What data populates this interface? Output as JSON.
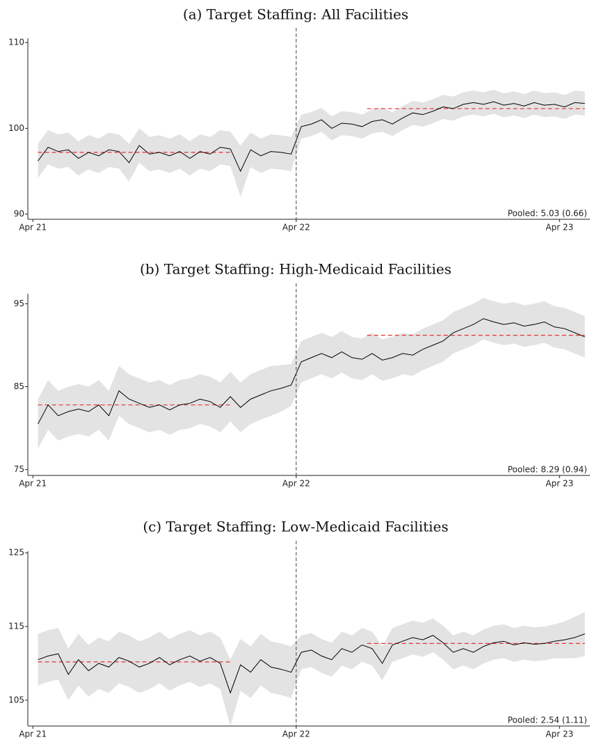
{
  "chart_data": [
    {
      "type": "line",
      "title": "(a) Target Staffing: All Facilities",
      "x": [
        1,
        3,
        5,
        7,
        9,
        11,
        13,
        15,
        17,
        19,
        21,
        23,
        25,
        27,
        29,
        31,
        33,
        35,
        37,
        39,
        41,
        43,
        45,
        47,
        49,
        51,
        53,
        55,
        57,
        59,
        61,
        63,
        65,
        67,
        69,
        71,
        73,
        75,
        77,
        79,
        81,
        83,
        85,
        87,
        89,
        91,
        93,
        95,
        97,
        99,
        101,
        103,
        105,
        107,
        109
      ],
      "xlim": [
        -1,
        110
      ],
      "xticks": [
        {
          "value": 0,
          "label": "Apr 21"
        },
        {
          "value": 52,
          "label": "Apr 22"
        },
        {
          "value": 104,
          "label": "Apr 23"
        }
      ],
      "ylim": [
        89.4,
        110.5
      ],
      "yticks": [
        90,
        100,
        110
      ],
      "series": [
        {
          "color": "#000000",
          "band_color": "#e3e3e3",
          "values": [
            96.2,
            97.8,
            97.3,
            97.5,
            96.5,
            97.2,
            96.8,
            97.5,
            97.3,
            96.0,
            98.0,
            97.0,
            97.2,
            96.8,
            97.3,
            96.5,
            97.3,
            97.0,
            97.8,
            97.6,
            95.0,
            97.5,
            96.8,
            97.3,
            97.2,
            97.0,
            100.2,
            100.5,
            101.0,
            100.0,
            100.6,
            100.5,
            100.2,
            100.8,
            101.0,
            100.5,
            101.2,
            101.8,
            101.6,
            102.0,
            102.5,
            102.3,
            102.8,
            103.0,
            102.8,
            103.1,
            102.7,
            102.9,
            102.6,
            103.0,
            102.7,
            102.8,
            102.5,
            103.0,
            102.9
          ],
          "ci": [
            2,
            2,
            2,
            2,
            2,
            2,
            2,
            2,
            2,
            2.2,
            2,
            2,
            2,
            2,
            2,
            2,
            2,
            2,
            2,
            2,
            3,
            2,
            2,
            2,
            2,
            2,
            1.4,
            1.4,
            1.4,
            1.4,
            1.4,
            1.4,
            1.4,
            1.4,
            1.4,
            1.4,
            1.4,
            1.4,
            1.4,
            1.4,
            1.4,
            1.4,
            1.4,
            1.4,
            1.4,
            1.4,
            1.4,
            1.4,
            1.4,
            1.4,
            1.4,
            1.4,
            1.4,
            1.4,
            1.4
          ]
        }
      ],
      "reference_lines": [
        {
          "value": 97.2,
          "x": [
            1,
            39
          ],
          "color": "#e8302f"
        },
        {
          "value": 102.3,
          "x": [
            66,
            109
          ],
          "color": "#e8302f"
        }
      ],
      "vline": 52,
      "annotation": "Pooled: 5.03 (0.66)"
    },
    {
      "type": "line",
      "title": "(b) Target Staffing: High-Medicaid Facilities",
      "x": [
        1,
        3,
        5,
        7,
        9,
        11,
        13,
        15,
        17,
        19,
        21,
        23,
        25,
        27,
        29,
        31,
        33,
        35,
        37,
        39,
        41,
        43,
        45,
        47,
        49,
        51,
        53,
        55,
        57,
        59,
        61,
        63,
        65,
        67,
        69,
        71,
        73,
        75,
        77,
        79,
        81,
        83,
        85,
        87,
        89,
        91,
        93,
        95,
        97,
        99,
        101,
        103,
        105,
        107,
        109
      ],
      "xlim": [
        -1,
        110
      ],
      "xticks": [
        {
          "value": 0,
          "label": "Apr 21"
        },
        {
          "value": 52,
          "label": "Apr 22"
        },
        {
          "value": 104,
          "label": "Apr 23"
        }
      ],
      "ylim": [
        74.3,
        96.2
      ],
      "yticks": [
        75,
        85,
        95
      ],
      "series": [
        {
          "color": "#000000",
          "band_color": "#e3e3e3",
          "values": [
            80.5,
            82.8,
            81.5,
            82.0,
            82.3,
            82.0,
            82.8,
            81.5,
            84.5,
            83.5,
            83.0,
            82.5,
            82.8,
            82.2,
            82.8,
            83.0,
            83.5,
            83.2,
            82.5,
            83.8,
            82.5,
            83.5,
            84.0,
            84.5,
            84.8,
            85.2,
            88.0,
            88.5,
            89.0,
            88.5,
            89.2,
            88.5,
            88.3,
            89.0,
            88.2,
            88.5,
            89.0,
            88.8,
            89.5,
            90.0,
            90.5,
            91.5,
            92.0,
            92.5,
            93.2,
            92.8,
            92.5,
            92.7,
            92.3,
            92.5,
            92.8,
            92.2,
            92.0,
            91.5,
            91.0
          ],
          "ci": [
            3,
            3,
            3,
            3,
            3,
            3,
            3,
            3,
            3,
            3,
            3,
            3,
            3,
            3,
            3,
            3,
            3,
            3,
            3,
            3,
            3,
            3,
            3,
            3,
            2.8,
            2.5,
            2.5,
            2.5,
            2.5,
            2.5,
            2.5,
            2.5,
            2.5,
            2.5,
            2.5,
            2.5,
            2.5,
            2.5,
            2.5,
            2.5,
            2.5,
            2.5,
            2.5,
            2.5,
            2.5,
            2.5,
            2.5,
            2.5,
            2.5,
            2.5,
            2.5,
            2.5,
            2.5,
            2.5,
            2.5
          ]
        }
      ],
      "reference_lines": [
        {
          "value": 82.8,
          "x": [
            1,
            39
          ],
          "color": "#e8302f"
        },
        {
          "value": 91.2,
          "x": [
            66,
            109
          ],
          "color": "#e8302f"
        }
      ],
      "vline": 52,
      "annotation": "Pooled: 8.29 (0.94)"
    },
    {
      "type": "line",
      "title": "(c) Target Staffing: Low-Medicaid Facilities",
      "x": [
        1,
        3,
        5,
        7,
        9,
        11,
        13,
        15,
        17,
        19,
        21,
        23,
        25,
        27,
        29,
        31,
        33,
        35,
        37,
        39,
        41,
        43,
        45,
        47,
        49,
        51,
        53,
        55,
        57,
        59,
        61,
        63,
        65,
        67,
        69,
        71,
        73,
        75,
        77,
        79,
        81,
        83,
        85,
        87,
        89,
        91,
        93,
        95,
        97,
        99,
        101,
        103,
        105,
        107,
        109
      ],
      "xlim": [
        -1,
        110
      ],
      "xticks": [
        {
          "value": 0,
          "label": "Apr 21"
        },
        {
          "value": 52,
          "label": "Apr 22"
        },
        {
          "value": 104,
          "label": "Apr 23"
        }
      ],
      "ylim": [
        101.5,
        125.2
      ],
      "yticks": [
        105,
        115,
        125
      ],
      "series": [
        {
          "color": "#000000",
          "band_color": "#e3e3e3",
          "values": [
            110.5,
            111.0,
            111.3,
            108.5,
            110.5,
            109.0,
            110.0,
            109.5,
            110.8,
            110.3,
            109.5,
            110.0,
            110.8,
            109.8,
            110.5,
            111.0,
            110.3,
            110.8,
            110.0,
            106.0,
            109.8,
            108.8,
            110.5,
            109.5,
            109.2,
            108.8,
            111.5,
            111.8,
            111.0,
            110.5,
            112.0,
            111.5,
            112.5,
            112.0,
            110.0,
            112.5,
            113.0,
            113.5,
            113.2,
            113.8,
            112.8,
            111.5,
            112.0,
            111.5,
            112.3,
            112.8,
            113.0,
            112.5,
            112.8,
            112.6,
            112.7,
            113.0,
            113.2,
            113.5,
            114.0
          ],
          "ci": [
            3.5,
            3.5,
            3.5,
            3.5,
            3.5,
            3.5,
            3.5,
            3.5,
            3.5,
            3.5,
            3.5,
            3.5,
            3.5,
            3.5,
            3.5,
            3.5,
            3.5,
            3.5,
            3.5,
            4.5,
            3.5,
            3.5,
            3.5,
            3.5,
            3.5,
            3.5,
            2.3,
            2.3,
            2.3,
            2.3,
            2.3,
            2.3,
            2.3,
            2.3,
            2.3,
            2.3,
            2.3,
            2.3,
            2.3,
            2.3,
            2.3,
            2.3,
            2.3,
            2.3,
            2.3,
            2.3,
            2.3,
            2.3,
            2.3,
            2.3,
            2.3,
            2.3,
            2.5,
            2.8,
            3.0
          ]
        }
      ],
      "reference_lines": [
        {
          "value": 110.2,
          "x": [
            1,
            39
          ],
          "color": "#e8302f"
        },
        {
          "value": 112.7,
          "x": [
            66,
            109
          ],
          "color": "#e8302f"
        }
      ],
      "vline": 52,
      "annotation": "Pooled: 2.54 (1.11)"
    }
  ]
}
